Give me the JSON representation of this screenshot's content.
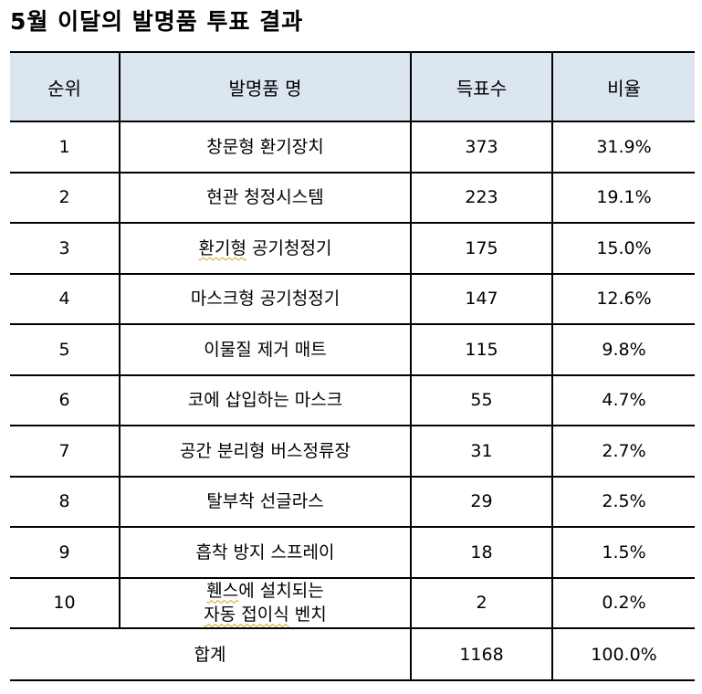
{
  "title": "5월 이달의 발명품 투표 결과",
  "header_bg": "#dce6f1",
  "columns": {
    "rank": "순위",
    "name": "발명품 명",
    "votes": "득표수",
    "ratio": "비율"
  },
  "rows": [
    {
      "rank": "1",
      "name": "창문형 환기장치",
      "votes": "373",
      "ratio": "31.9%"
    },
    {
      "rank": "2",
      "name": "현관 청정시스템",
      "votes": "223",
      "ratio": "19.1%"
    },
    {
      "rank": "3",
      "name_a": "환기형",
      "name_b": " 공기청정기",
      "votes": "175",
      "ratio": "15.0%"
    },
    {
      "rank": "4",
      "name": "마스크형 공기청정기",
      "votes": "147",
      "ratio": "12.6%"
    },
    {
      "rank": "5",
      "name": "이물질 제거 매트",
      "votes": "115",
      "ratio": "9.8%"
    },
    {
      "rank": "6",
      "name": "코에 삽입하는 마스크",
      "votes": "55",
      "ratio": "4.7%"
    },
    {
      "rank": "7",
      "name": "공간 분리형 버스정류장",
      "votes": "31",
      "ratio": "2.7%"
    },
    {
      "rank": "8",
      "name": "탈부착 선글라스",
      "votes": "29",
      "ratio": "2.5%"
    },
    {
      "rank": "9",
      "name": "흡착 방지 스프레이",
      "votes": "18",
      "ratio": "1.5%"
    },
    {
      "rank": "10",
      "name_line1_a": "휀스",
      "name_line1_b": "에 설치되는",
      "name_line2_a": "자동 접이식",
      "name_line2_b": " 벤치",
      "votes": "2",
      "ratio": "0.2%"
    }
  ],
  "total": {
    "label": "합계",
    "votes": "1168",
    "ratio": "100.0%"
  },
  "chart_data": {
    "type": "table",
    "title": "5월 이달의 발명품 투표 결과",
    "columns": [
      "순위",
      "발명품 명",
      "득표수",
      "비율"
    ],
    "rows": [
      [
        1,
        "창문형 환기장치",
        373,
        "31.9%"
      ],
      [
        2,
        "현관 청정시스템",
        223,
        "19.1%"
      ],
      [
        3,
        "환기형 공기청정기",
        175,
        "15.0%"
      ],
      [
        4,
        "마스크형 공기청정기",
        147,
        "12.6%"
      ],
      [
        5,
        "이물질 제거 매트",
        115,
        "9.8%"
      ],
      [
        6,
        "코에 삽입하는 마스크",
        55,
        "4.7%"
      ],
      [
        7,
        "공간 분리형 버스정류장",
        31,
        "2.7%"
      ],
      [
        8,
        "탈부착 선글라스",
        29,
        "2.5%"
      ],
      [
        9,
        "흡착 방지 스프레이",
        18,
        "1.5%"
      ],
      [
        10,
        "휀스에 설치되는 자동 접이식 벤치",
        2,
        "0.2%"
      ]
    ],
    "total": [
      "합계",
      1168,
      "100.0%"
    ]
  }
}
